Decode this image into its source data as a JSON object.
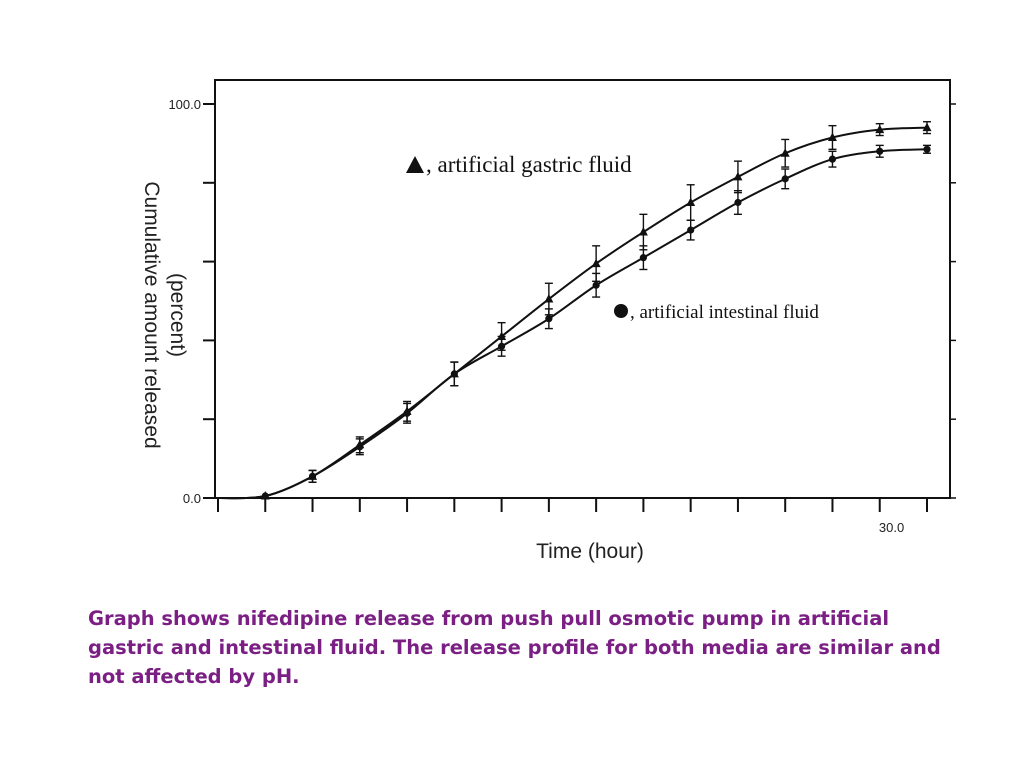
{
  "chart_data": {
    "type": "line",
    "xlabel": "Time  (hour)",
    "ylabel": [
      "Cumulative  amount  released",
      "(percent)"
    ],
    "xlim": [
      0,
      31.5
    ],
    "ylim": [
      0,
      100
    ],
    "x_tick_values": [
      0,
      2,
      4,
      6,
      8,
      10,
      12,
      14,
      16,
      18,
      20,
      22,
      24,
      26,
      28,
      30
    ],
    "y_tick_values": [
      0,
      20,
      40,
      60,
      80,
      100
    ],
    "x_tick_labels": [
      {
        "value": 28.5,
        "label": "30.0"
      }
    ],
    "y_tick_labels": [
      {
        "value": 0,
        "label": "0.0"
      },
      {
        "value": 100,
        "label": "100.0"
      }
    ],
    "grid": false,
    "series": [
      {
        "name": "artificial gastric fluid",
        "marker": "triangle",
        "color": "#111111",
        "x": [
          0,
          2,
          4,
          6,
          8,
          10,
          12,
          14,
          16,
          18,
          20,
          22,
          24,
          26,
          28,
          30
        ],
        "y": [
          0,
          0.5,
          5.5,
          13.5,
          22,
          31.5,
          41,
          50.5,
          59.5,
          67.5,
          75,
          81.5,
          87.5,
          91.5,
          93.5,
          94
        ],
        "err": [
          0,
          0.5,
          1.5,
          2,
          2.5,
          3,
          3.5,
          4,
          4.5,
          4.5,
          4.5,
          4,
          3.5,
          3,
          1.5,
          1.5
        ]
      },
      {
        "name": "artificial intestinal fluid",
        "marker": "circle",
        "color": "#111111",
        "x": [
          0,
          2,
          4,
          6,
          8,
          10,
          12,
          14,
          16,
          18,
          20,
          22,
          24,
          26,
          28,
          30
        ],
        "y": [
          0,
          0.5,
          5.5,
          13,
          21.5,
          31.5,
          38.5,
          45.5,
          54,
          61,
          68,
          75,
          81,
          86,
          88,
          88.5
        ],
        "err": [
          0,
          0.5,
          1.5,
          2,
          2.5,
          3,
          2.5,
          2.5,
          3,
          3,
          2.5,
          3,
          2.5,
          2,
          1.5,
          1
        ]
      }
    ],
    "legend": [
      {
        "marker": "triangle",
        "text": ", artificial gastric fluid",
        "placement": "upper-middle"
      },
      {
        "marker": "circle",
        "text": ", artificial intestinal fluid",
        "placement": "middle-right"
      }
    ]
  },
  "caption": "Graph shows nifedipine release from push pull osmotic pump in artificial gastric and intestinal fluid. The release profile for both media are similar and not affected by pH."
}
